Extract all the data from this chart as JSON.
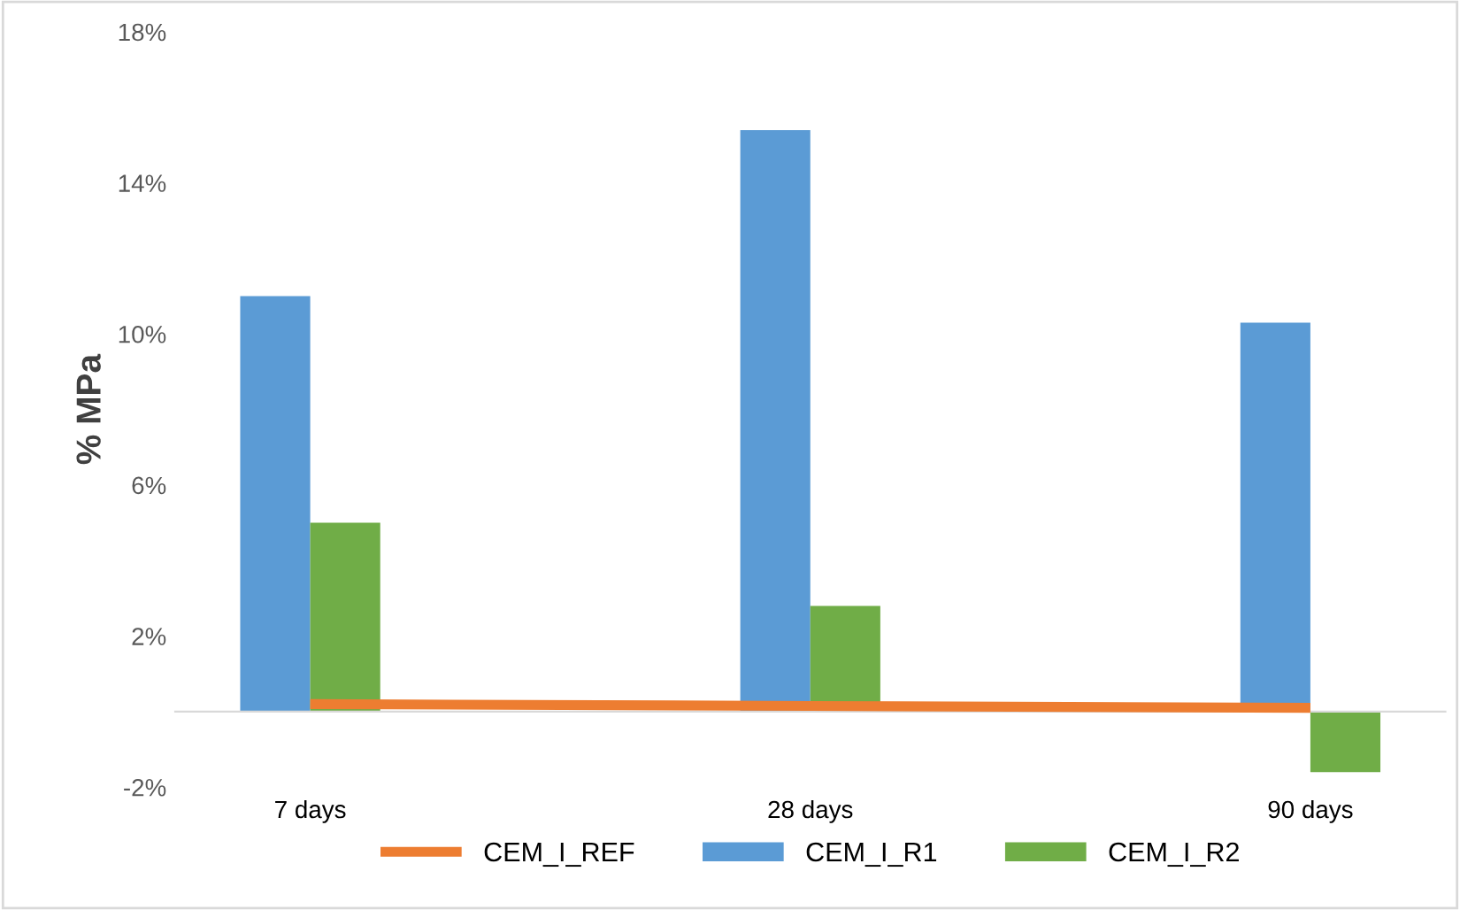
{
  "chart_data": {
    "type": "bar",
    "ylabel": "% MPa",
    "categories": [
      "7 days",
      "28 days",
      "90 days"
    ],
    "series": [
      {
        "name": "CEM_I_REF",
        "type": "line",
        "color": "#ed7d31",
        "values": [
          0.2,
          0.15,
          0.1
        ]
      },
      {
        "name": "CEM_I_R1",
        "color": "#5b9bd5",
        "values": [
          11.0,
          15.4,
          10.3
        ]
      },
      {
        "name": "CEM_I_R2",
        "color": "#70ad47",
        "values": [
          5.0,
          2.8,
          -1.6
        ]
      }
    ],
    "ylim": [
      -2,
      18
    ],
    "yticks": [
      {
        "value": -2,
        "label": "-2%"
      },
      {
        "value": 2,
        "label": "2%"
      },
      {
        "value": 6,
        "label": "6%"
      },
      {
        "value": 10,
        "label": "10%"
      },
      {
        "value": 14,
        "label": "14%"
      },
      {
        "value": 18,
        "label": "18%"
      }
    ],
    "grid": false,
    "legend": "bottom"
  }
}
